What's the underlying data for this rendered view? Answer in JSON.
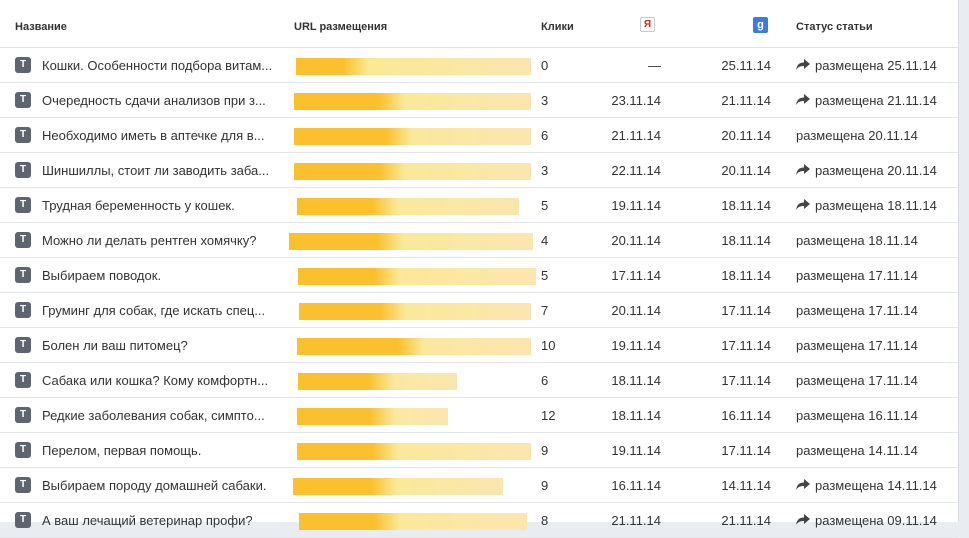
{
  "header": {
    "name": "Название",
    "url": "URL размещения",
    "clicks": "Клики",
    "yandex_glyph": "Я",
    "google_glyph": "g",
    "status": "Статус статьи"
  },
  "colors": {
    "bar_solid": "#fbc02d",
    "bar_light": "#fbe6b0",
    "type_icon": "#5f6570"
  },
  "rows": [
    {
      "type": "T",
      "title": "Кошки. Особенности подбора витам...",
      "clicks": "0",
      "yandex": "—",
      "google": "25.11.14",
      "status": "размещена 25.11.14",
      "shared": true,
      "fill": 0.2
    },
    {
      "type": "T",
      "title": "Очередность сдачи анализов при з...",
      "clicks": "3",
      "yandex": "23.11.14",
      "google": "21.11.14",
      "status": "размещена 21.11.14",
      "shared": true,
      "fill": 0.36
    },
    {
      "type": "T",
      "title": "Необходимо иметь в аптечке для в...",
      "clicks": "6",
      "yandex": "21.11.14",
      "google": "20.11.14",
      "status": "размещена 20.11.14",
      "shared": false,
      "fill": 0.39
    },
    {
      "type": "T",
      "title": "Шиншиллы, стоит ли заводить заба...",
      "clicks": "3",
      "yandex": "22.11.14",
      "google": "20.11.14",
      "status": "размещена 20.11.14",
      "shared": true,
      "fill": 0.36
    },
    {
      "type": "T",
      "title": "Трудная беременность у кошек.",
      "clicks": "5",
      "yandex": "19.11.14",
      "google": "18.11.14",
      "status": "размещена 18.11.14",
      "shared": true,
      "fill": 0.34
    },
    {
      "type": "T",
      "title": "Можно ли делать рентген хомячку?",
      "clicks": "4",
      "yandex": "20.11.14",
      "google": "18.11.14",
      "status": "размещена 18.11.14",
      "shared": false,
      "fill": 0.36
    },
    {
      "type": "T",
      "title": "Выбираем поводок.",
      "clicks": "5",
      "yandex": "17.11.14",
      "google": "18.11.14",
      "status": "размещена 17.11.14",
      "shared": false,
      "fill": 0.32
    },
    {
      "type": "T",
      "title": "Груминг для собак, где искать спец...",
      "clicks": "7",
      "yandex": "20.11.14",
      "google": "17.11.14",
      "status": "размещена 17.11.14",
      "shared": false,
      "fill": 0.35
    },
    {
      "type": "T",
      "title": "Болен ли ваш питомец?",
      "clicks": "10",
      "yandex": "19.11.14",
      "google": "17.11.14",
      "status": "размещена 17.11.14",
      "shared": false,
      "fill": 0.43
    },
    {
      "type": "T",
      "title": "Сабака или кошка? Кому комфортн...",
      "clicks": "6",
      "yandex": "18.11.14",
      "google": "17.11.14",
      "status": "размещена 17.11.14",
      "shared": false,
      "fill": 0.44
    },
    {
      "type": "T",
      "title": "Редкие заболевания собак, симпто...",
      "clicks": "12",
      "yandex": "18.11.14",
      "google": "16.11.14",
      "status": "размещена 16.11.14",
      "shared": false,
      "fill": 0.48
    },
    {
      "type": "T",
      "title": "Перелом, первая помощь.",
      "clicks": "9",
      "yandex": "19.11.14",
      "google": "17.11.14",
      "status": "размещена 14.11.14",
      "shared": false,
      "fill": 0.32
    },
    {
      "type": "T",
      "title": "Выбираем породу домашней сабаки.",
      "clicks": "9",
      "yandex": "16.11.14",
      "google": "14.11.14",
      "status": "размещена 14.11.14",
      "shared": true,
      "fill": 0.37
    },
    {
      "type": "T",
      "title": "А ваш лечащий ветеринар профи?",
      "clicks": "8",
      "yandex": "21.11.14",
      "google": "21.11.14",
      "status": "размещена 09.11.14",
      "shared": true,
      "fill": 0.33
    }
  ]
}
